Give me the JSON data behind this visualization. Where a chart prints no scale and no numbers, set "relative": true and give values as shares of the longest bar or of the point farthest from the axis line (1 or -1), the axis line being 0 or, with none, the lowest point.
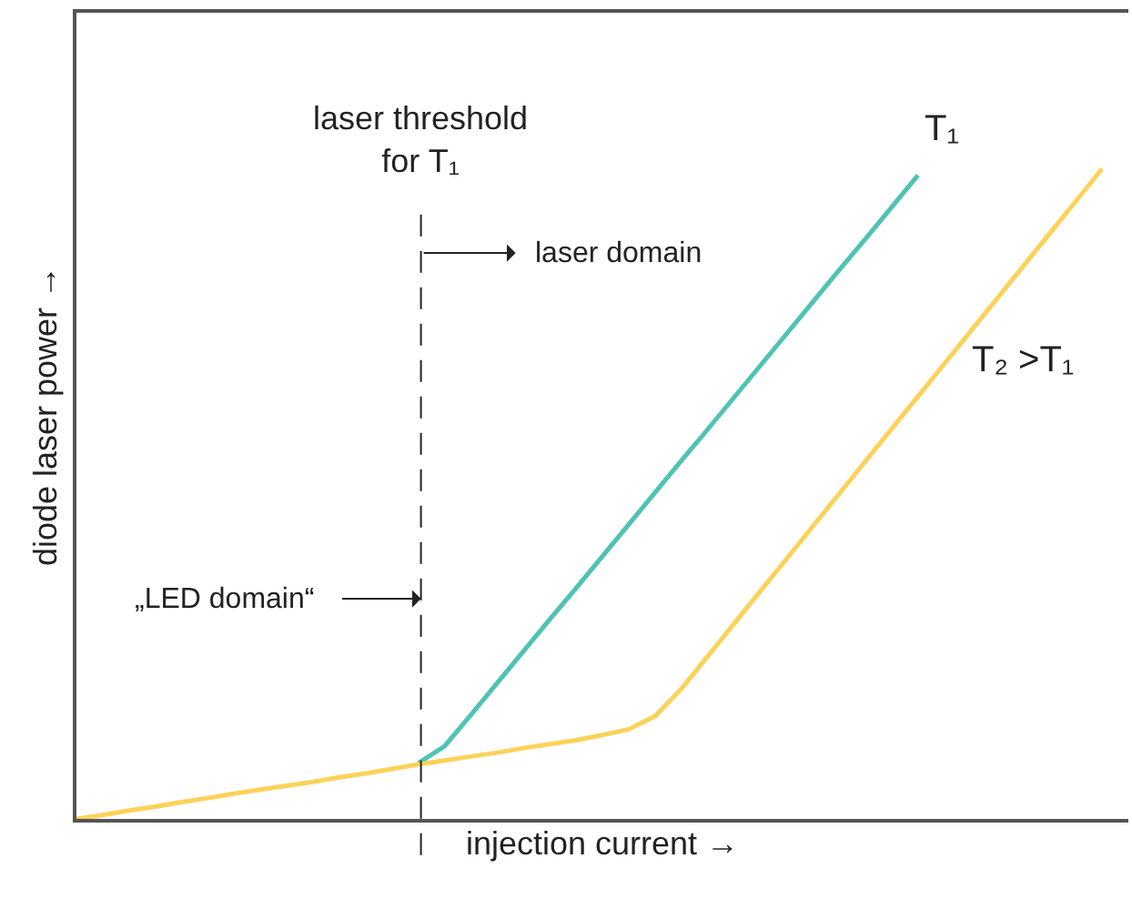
{
  "chart_data": {
    "type": "line",
    "relative": true,
    "xlabel": "injection current →",
    "ylabel": "diode laser power →",
    "categories": [
      null,
      null,
      null,
      null,
      null,
      null,
      null,
      null,
      null,
      null,
      null,
      null,
      null,
      null,
      null,
      null,
      null,
      null,
      null,
      null,
      null,
      null,
      null,
      null,
      null,
      null,
      null,
      null,
      null,
      null,
      null,
      null,
      null,
      null,
      null,
      null,
      null,
      null,
      null,
      null,
      null
    ],
    "tick_labels": false,
    "grid": false,
    "legend": false,
    "line_style": "solid",
    "marker": "none",
    "series": [
      {
        "name": "T₁",
        "color": "#4fc3b5",
        "values": [
          null,
          null,
          null,
          null,
          null,
          null,
          null,
          null,
          null,
          null,
          null,
          null,
          null,
          0.086,
          0.112,
          0.16,
          0.209,
          0.258,
          0.307,
          0.355,
          0.404,
          0.453,
          0.502,
          0.551,
          0.599,
          0.648,
          0.697,
          0.746,
          0.795,
          0.844,
          0.892,
          0.941,
          0.99,
          null,
          null,
          null,
          null,
          null,
          null,
          null,
          null
        ]
      },
      {
        "name": "T₂ >T₁",
        "color": "#fcd25a",
        "values": [
          0,
          0.006,
          0.013,
          0.019,
          0.026,
          0.032,
          0.039,
          0.045,
          0.051,
          0.057,
          0.064,
          0.07,
          0.077,
          0.084,
          0.09,
          0.096,
          0.102,
          0.109,
          0.115,
          0.121,
          0.129,
          0.138,
          0.158,
          0.2,
          0.25,
          0.3,
          0.35,
          0.4,
          0.45,
          0.5,
          0.55,
          0.6,
          0.65,
          0.7,
          0.75,
          0.8,
          0.85,
          0.9,
          0.95,
          1.0,
          null
        ]
      }
    ],
    "annotations": [
      "laser threshold\nfor T₁",
      "„LED domain“",
      "laser domain"
    ]
  }
}
